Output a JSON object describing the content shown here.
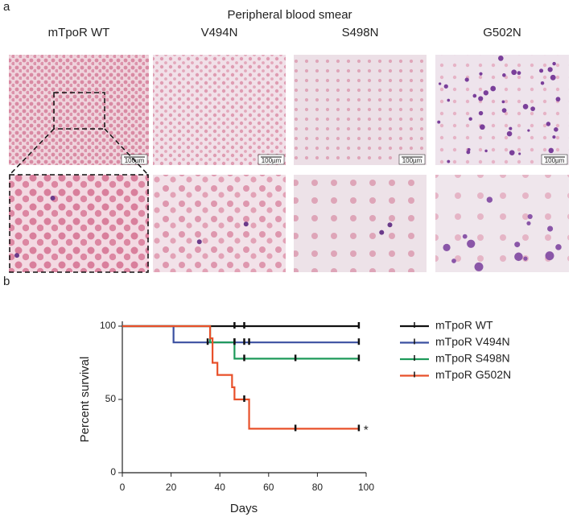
{
  "panel_a": {
    "label": "a",
    "title": "Peripheral blood smear",
    "columns": [
      "mTpoR WT",
      "V494N",
      "S498N",
      "G502N"
    ],
    "scale_bars": [
      "100µm",
      "100µm",
      "100µm",
      "100µm"
    ]
  },
  "chart_data": {
    "type": "survival",
    "panel_label": "b",
    "xlabel": "Days",
    "ylabel": "Percent survival",
    "xlim": [
      0,
      100
    ],
    "xticks": [
      0,
      20,
      40,
      60,
      80,
      100
    ],
    "ylim": [
      0,
      100
    ],
    "yticks": [
      0,
      50,
      100
    ],
    "annotation": "*",
    "series": [
      {
        "name": "mTpoR WT",
        "color": "#111111",
        "x": [
          0,
          97
        ],
        "values": [
          100,
          100
        ],
        "censor_x": [
          46,
          50,
          97
        ],
        "censor_values": [
          100,
          100,
          100
        ]
      },
      {
        "name": "mTpoR V494N",
        "color": "#3a4fa0",
        "x": [
          0,
          21,
          97
        ],
        "values": [
          100,
          88.9,
          88.9
        ],
        "censor_x": [
          35,
          46,
          50,
          52,
          97
        ],
        "censor_values": [
          88.9,
          88.9,
          88.9,
          88.9,
          88.9
        ]
      },
      {
        "name": "mTpoR S498N",
        "color": "#1e9a5a",
        "x": [
          0,
          36,
          46,
          97
        ],
        "values": [
          100,
          88.9,
          77.8,
          77.8
        ],
        "censor_x": [
          46,
          50,
          71,
          97
        ],
        "censor_values": [
          88.9,
          77.8,
          77.8,
          77.8
        ]
      },
      {
        "name": "mTpoR G502N",
        "color": "#e8502a",
        "x": [
          0,
          36,
          37,
          39,
          45,
          46,
          52,
          97
        ],
        "values": [
          100,
          91.7,
          75,
          66.7,
          58.3,
          50,
          30,
          30
        ],
        "censor_x": [
          50,
          71,
          97
        ],
        "censor_values": [
          50,
          30,
          30
        ]
      }
    ]
  }
}
